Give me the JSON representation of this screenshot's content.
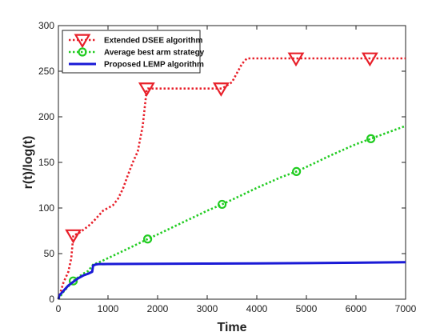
{
  "chart_data": {
    "type": "line",
    "xlabel": "Time",
    "ylabel": "r(t)/log(t)",
    "xlim": [
      0,
      7000
    ],
    "ylim": [
      0,
      300
    ],
    "x_ticks": [
      0,
      1000,
      2000,
      3000,
      4000,
      5000,
      6000,
      7000
    ],
    "y_ticks": [
      0,
      50,
      100,
      150,
      200,
      250,
      300
    ],
    "x_tick_labels": [
      "0",
      "1000",
      "2000",
      "3000",
      "4000",
      "5000",
      "6000",
      "7000"
    ],
    "y_tick_labels": [
      "0",
      "50",
      "100",
      "150",
      "200",
      "250",
      "300"
    ],
    "grid": false,
    "legend_position": "top-left",
    "series": [
      {
        "name": "Extended DSEE algorithm",
        "color": "#e8202a",
        "line_style": "dotted",
        "marker": "triangle-down",
        "x": [
          0,
          100,
          200,
          260,
          300,
          400,
          500,
          600,
          700,
          800,
          900,
          1000,
          1100,
          1200,
          1300,
          1400,
          1500,
          1600,
          1700,
          1780,
          1800,
          2000,
          2500,
          3000,
          3280,
          3300,
          3500,
          3600,
          3700,
          3800,
          4000,
          4500,
          4790,
          5000,
          5500,
          6000,
          6280,
          6500,
          7000
        ],
        "y": [
          0,
          18,
          30,
          45,
          70,
          72,
          76,
          80,
          85,
          91,
          97,
          100,
          103,
          110,
          121,
          136,
          150,
          162,
          190,
          230,
          231,
          231,
          231,
          231,
          231,
          231,
          238,
          248,
          258,
          264,
          264,
          264,
          264,
          264,
          264,
          264,
          264,
          264,
          264
        ],
        "marker_x": [
          300,
          1780,
          3280,
          4790,
          6280
        ],
        "marker_y": [
          70,
          231,
          231,
          264,
          264
        ]
      },
      {
        "name": "Average best arm strategy",
        "color": "#22cc22",
        "line_style": "dotted",
        "marker": "circle",
        "x": [
          0,
          100,
          200,
          300,
          400,
          500,
          600,
          700,
          800,
          1000,
          1500,
          1800,
          2000,
          2500,
          3000,
          3300,
          3500,
          4000,
          4500,
          4800,
          5000,
          5500,
          6000,
          6300,
          6500,
          7000
        ],
        "y": [
          0,
          8,
          14,
          20,
          24,
          28,
          31,
          38,
          40,
          45,
          58,
          66,
          71,
          84,
          97,
          104,
          109,
          122,
          134,
          140,
          145,
          158,
          170,
          176,
          180,
          190
        ],
        "marker_x": [
          300,
          1800,
          3300,
          4800,
          6300
        ],
        "marker_y": [
          20,
          66,
          104,
          140,
          176
        ]
      },
      {
        "name": "Proposed LEMP algorithm",
        "color": "#1a1ad6",
        "line_style": "solid",
        "marker": "none",
        "x": [
          0,
          20,
          50,
          100,
          150,
          200,
          300,
          400,
          500,
          600,
          680,
          700,
          750,
          800,
          1000,
          2000,
          3000,
          4000,
          5000,
          6000,
          7000
        ],
        "y": [
          0,
          4,
          6,
          9,
          12,
          15,
          19,
          23,
          26,
          28,
          30,
          37,
          38,
          38.5,
          38.6,
          38.8,
          39,
          39.3,
          39.6,
          40,
          40.5
        ]
      }
    ]
  }
}
